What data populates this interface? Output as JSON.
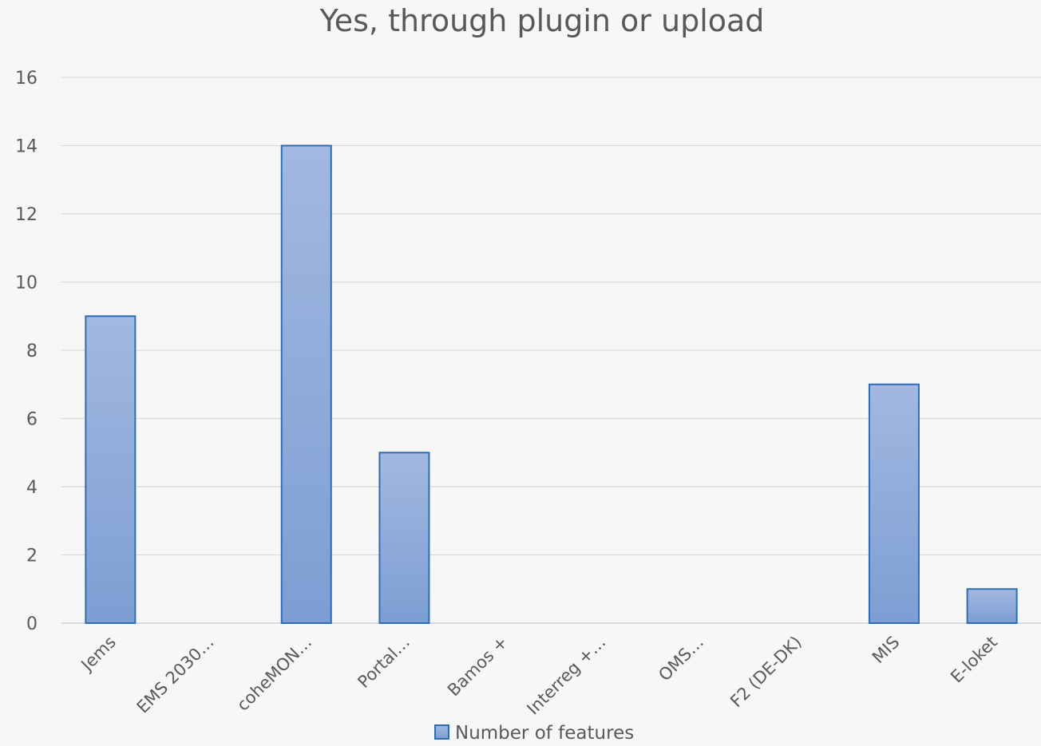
{
  "chart_data": {
    "type": "bar",
    "title": "Yes, through plugin or upload",
    "xlabel": "",
    "ylabel": "",
    "categories": [
      "Jems",
      "EMS 2030…",
      "coheMON…",
      "Portal…",
      "Bamos +",
      "Interreg +…",
      "OMS…",
      "F2 (DE-DK)",
      "MIS",
      "E-loket"
    ],
    "series": [
      {
        "name": "Number of features",
        "values": [
          9,
          0,
          14,
          5,
          0,
          0,
          0,
          0,
          7,
          1
        ]
      }
    ],
    "ylim": [
      0,
      16
    ],
    "yticks": [
      0,
      2,
      4,
      6,
      8,
      10,
      12,
      14,
      16
    ],
    "grid": true,
    "legend_position": "bottom",
    "colors": {
      "bar_top": "#a3b8e0",
      "bar_bottom": "#7c9ed3",
      "bar_border": "#2e6db4",
      "text": "#595959",
      "grid": "#d9d9d9",
      "background": "#f7f7f7"
    }
  }
}
